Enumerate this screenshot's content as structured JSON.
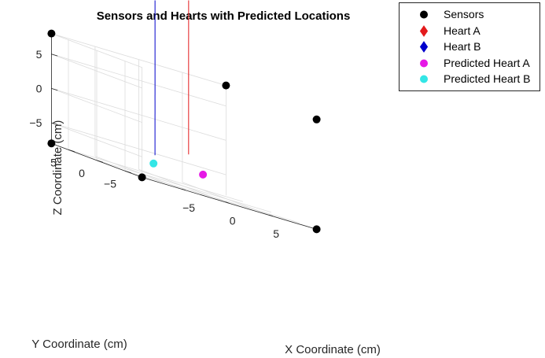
{
  "chart_data": {
    "type": "scatter",
    "projection": "3d",
    "title": "Sensors and Hearts with Predicted Locations",
    "xlabel": "X Coordinate (cm)",
    "ylabel": "Y Coordinate (cm)",
    "zlabel": "Z Coordinate (cm)",
    "xlim": [
      -10,
      10
    ],
    "ylim": [
      -8,
      8
    ],
    "zlim": [
      -8,
      8
    ],
    "x_ticks": [
      "-5",
      "0",
      "5"
    ],
    "y_ticks": [
      "-5",
      "0",
      "5"
    ],
    "z_ticks": [
      "-5",
      "0",
      "5"
    ],
    "grid": true,
    "legend_position": "top-right",
    "series": [
      {
        "name": "Sensors",
        "marker": "circle",
        "color": "#000000",
        "points": [
          [
            -10,
            8,
            8
          ],
          [
            10,
            -8,
            8
          ],
          [
            10,
            8,
            8
          ],
          [
            -10,
            8,
            -8
          ],
          [
            -10,
            -8,
            -8
          ],
          [
            10,
            -8,
            -8
          ]
        ]
      },
      {
        "name": "Heart A",
        "marker": "diamond",
        "color": "#e31a1c",
        "points": [
          [
            1.5,
            1.5,
            -4
          ]
        ]
      },
      {
        "name": "Heart B",
        "marker": "diamond",
        "color": "#0000cc",
        "points": [
          [
            -3,
            0.5,
            -5.5
          ]
        ]
      },
      {
        "name": "Predicted Heart A",
        "marker": "circle",
        "color": "#e619e6",
        "points": [
          [
            2.5,
            0.5,
            -5.5
          ]
        ]
      },
      {
        "name": "Predicted Heart B",
        "marker": "circle",
        "color": "#33e6e6",
        "points": [
          [
            -3.5,
            0,
            -6
          ]
        ]
      }
    ]
  }
}
